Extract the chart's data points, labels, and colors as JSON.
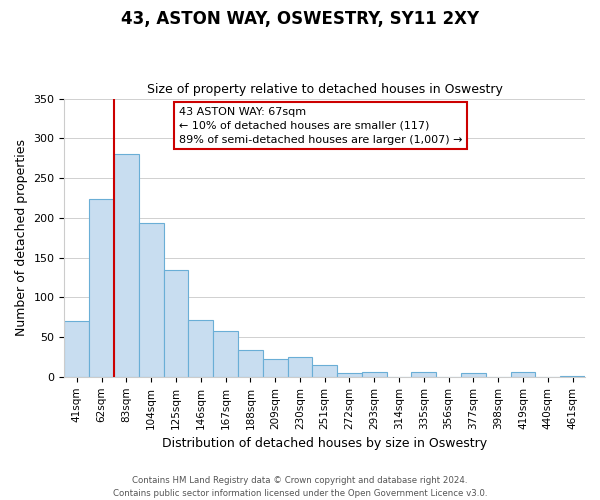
{
  "title": "43, ASTON WAY, OSWESTRY, SY11 2XY",
  "subtitle": "Size of property relative to detached houses in Oswestry",
  "xlabel": "Distribution of detached houses by size in Oswestry",
  "ylabel": "Number of detached properties",
  "bar_color": "#c8ddf0",
  "bar_edge_color": "#6aaed6",
  "marker_line_color": "#cc0000",
  "categories": [
    "41sqm",
    "62sqm",
    "83sqm",
    "104sqm",
    "125sqm",
    "146sqm",
    "167sqm",
    "188sqm",
    "209sqm",
    "230sqm",
    "251sqm",
    "272sqm",
    "293sqm",
    "314sqm",
    "335sqm",
    "356sqm",
    "377sqm",
    "398sqm",
    "419sqm",
    "440sqm",
    "461sqm"
  ],
  "values": [
    70,
    224,
    280,
    194,
    134,
    72,
    58,
    34,
    23,
    25,
    15,
    5,
    6,
    0,
    6,
    0,
    5,
    0,
    6,
    0,
    1
  ],
  "ylim": [
    0,
    350
  ],
  "yticks": [
    0,
    50,
    100,
    150,
    200,
    250,
    300,
    350
  ],
  "annotation_title": "43 ASTON WAY: 67sqm",
  "annotation_line1": "← 10% of detached houses are smaller (117)",
  "annotation_line2": "89% of semi-detached houses are larger (1,007) →",
  "footer_line1": "Contains HM Land Registry data © Crown copyright and database right 2024.",
  "footer_line2": "Contains public sector information licensed under the Open Government Licence v3.0."
}
